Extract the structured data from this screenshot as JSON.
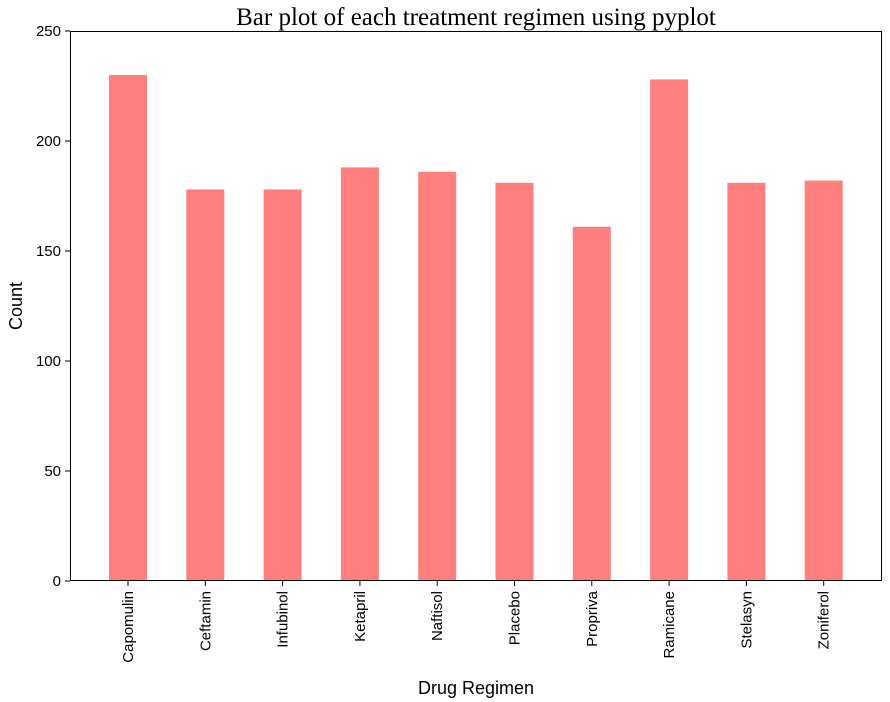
{
  "chart_data": {
    "type": "bar",
    "title": "Bar plot of each treatment regimen using pyplot",
    "xlabel": "Drug Regimen",
    "ylabel": "Count",
    "categories": [
      "Capomulin",
      "Ceftamin",
      "Infubinol",
      "Ketapril",
      "Naftisol",
      "Placebo",
      "Propriva",
      "Ramicane",
      "Stelasyn",
      "Zoniferol"
    ],
    "values": [
      230,
      178,
      178,
      188,
      186,
      181,
      161,
      228,
      181,
      182
    ],
    "ylim": [
      0,
      250
    ],
    "yticks": [
      0,
      50,
      100,
      150,
      200,
      250
    ],
    "bar_color": "#ff7f7f",
    "grid": false,
    "x_tick_rotation": "vertical"
  }
}
